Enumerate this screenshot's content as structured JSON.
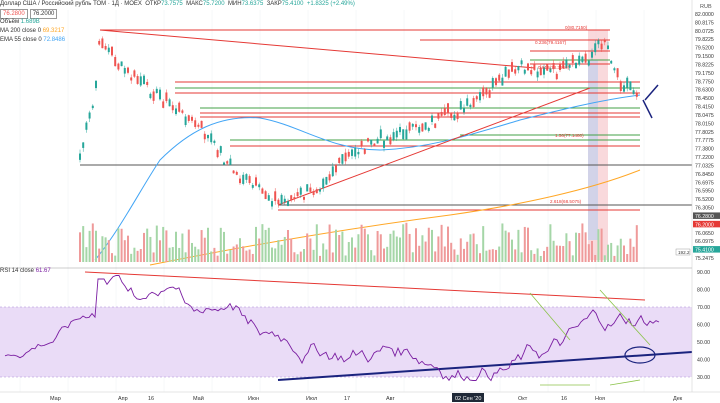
{
  "chart_data": [
    {
      "type": "candlestick",
      "title": "Доллар США / Российский рубль ТОМ · 1Д · MOEX",
      "ohlc": {
        "open": "73.7575",
        "high": "75.7200",
        "low": "73.6375",
        "close": "75.4100",
        "change": "+1.8325 (+2.49%)"
      },
      "bid": "76.2800",
      "ask": "76.2000",
      "currency": "RUB",
      "volume_label": "Объём",
      "volume_value": "1.689B",
      "ma_label": "MA 200 close 0",
      "ma_value": "69.3217",
      "ema_label": "EMA 55 close 0",
      "ema_value": "72.8486",
      "price_axis": [
        "82.0000",
        "80.8175",
        "80.0725",
        "79.8225",
        "79.5200",
        "79.1500",
        "78.8225",
        "79.1750",
        "78.7750",
        "78.6300",
        "78.4500",
        "78.4150",
        "78.0475",
        "78.0150",
        "77.8025",
        "77.7775",
        "77.3800",
        "77.2200",
        "77.0325",
        "76.8450",
        "76.6975",
        "76.5950",
        "76.5200",
        "76.3050",
        "76.2800",
        "76.2000",
        "76.0650",
        "66.0975",
        "75.4100",
        "75.2475"
      ],
      "fib_labels": [
        "0(80.7150)",
        "0.236(79.4167)",
        "0.618(78.3550)",
        "1.56(77.1480)",
        "2.618(68.5075)"
      ],
      "x_labels": [
        "Мар",
        "Апр",
        "16",
        "Май",
        "Июн",
        "Июл",
        "17",
        "Авг",
        "02 Сен '20",
        "Окт",
        "16",
        "Ноя",
        "Дек"
      ],
      "badge_192": "192.2"
    },
    {
      "type": "line",
      "title": "RSI 14 close 61.67",
      "rsi_label": "RSI 14 close",
      "rsi_value": "61.67",
      "y_ticks": [
        "90.00",
        "80.00",
        "70.00",
        "60.00",
        "50.00",
        "40.00",
        "30.00"
      ],
      "ylim": [
        25,
        95
      ],
      "overbought": 70,
      "oversold": 30
    }
  ]
}
